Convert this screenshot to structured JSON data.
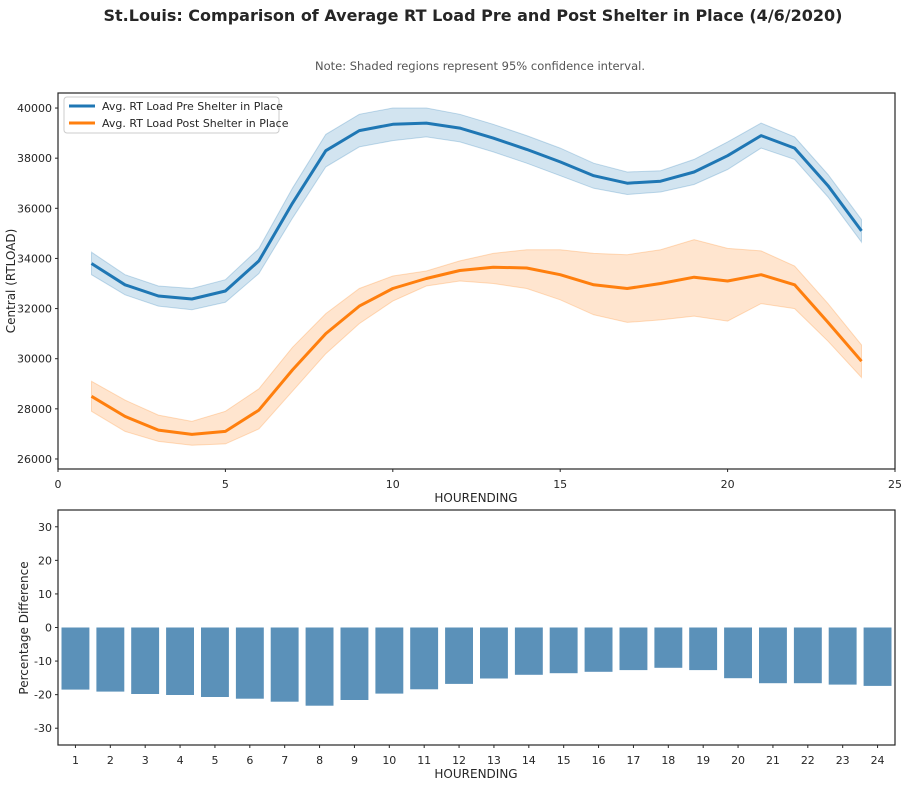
{
  "title": "St.Louis: Comparison of Average RT Load Pre and Post Shelter in Place (4/6/2020)",
  "note": "Note: Shaded regions represent 95% confidence interval.",
  "colors": {
    "pre": "#1f77b4",
    "post": "#ff7f0e",
    "bar": "#5b91b9"
  },
  "chart_data": [
    {
      "type": "line",
      "xlabel": "HOURENDING",
      "ylabel": "Central (RTLOAD)",
      "xlim": [
        0,
        25
      ],
      "ylim": [
        25600,
        40600
      ],
      "xticks": [
        "0",
        "5",
        "10",
        "15",
        "20",
        "25"
      ],
      "yticks": [
        "26000",
        "28000",
        "30000",
        "32000",
        "34000",
        "36000",
        "38000",
        "40000"
      ],
      "grid": false,
      "legend_position": "top-left",
      "x": [
        1,
        2,
        3,
        4,
        5,
        6,
        7,
        8,
        9,
        10,
        11,
        12,
        13,
        14,
        15,
        16,
        17,
        18,
        19,
        20,
        21,
        22,
        23,
        24
      ],
      "series": [
        {
          "name": "Avg. RT Load Pre Shelter in Place",
          "values": [
            33800,
            32950,
            32500,
            32380,
            32700,
            33900,
            36200,
            38300,
            39100,
            39350,
            39400,
            39200,
            38800,
            38350,
            37850,
            37300,
            37000,
            37080,
            37450,
            38100,
            38900,
            38400,
            36900,
            35100
          ],
          "ci_lower": [
            33350,
            32550,
            32100,
            31950,
            32250,
            33400,
            35600,
            37650,
            38450,
            38700,
            38850,
            38650,
            38250,
            37800,
            37300,
            36800,
            36550,
            36650,
            36950,
            37550,
            38400,
            37950,
            36450,
            34650
          ],
          "ci_upper": [
            34250,
            33350,
            32900,
            32800,
            33150,
            34400,
            36800,
            38950,
            39750,
            40000,
            40000,
            39750,
            39350,
            38900,
            38400,
            37800,
            37450,
            37500,
            37950,
            38650,
            39400,
            38850,
            37350,
            35550
          ]
        },
        {
          "name": "Avg. RT Load Post Shelter in Place",
          "values": [
            28500,
            27700,
            27150,
            26980,
            27100,
            27950,
            29550,
            31000,
            32100,
            32800,
            33200,
            33520,
            33650,
            33620,
            33350,
            32950,
            32800,
            33000,
            33250,
            33100,
            33350,
            32950,
            31450,
            29900
          ],
          "ci_lower": [
            27900,
            27100,
            26700,
            26550,
            26600,
            27200,
            28700,
            30200,
            31400,
            32300,
            32900,
            33100,
            33000,
            32800,
            32350,
            31750,
            31450,
            31550,
            31700,
            31500,
            32200,
            32000,
            30700,
            29250
          ],
          "ci_upper": [
            29100,
            28350,
            27750,
            27500,
            27900,
            28800,
            30450,
            31800,
            32800,
            33300,
            33500,
            33900,
            34200,
            34350,
            34350,
            34200,
            34150,
            34350,
            34750,
            34400,
            34300,
            33700,
            32200,
            30550
          ]
        }
      ]
    },
    {
      "type": "bar",
      "xlabel": "HOURENDING",
      "ylabel": "Percentage Difference",
      "ylim": [
        -35,
        35
      ],
      "yticks": [
        "30",
        "20",
        "10",
        "0",
        "-10",
        "-20",
        "-30"
      ],
      "grid": false,
      "categories": [
        "1",
        "2",
        "3",
        "4",
        "5",
        "6",
        "7",
        "8",
        "9",
        "10",
        "11",
        "12",
        "13",
        "14",
        "15",
        "16",
        "17",
        "18",
        "19",
        "20",
        "21",
        "22",
        "23",
        "24"
      ],
      "values": [
        -18.5,
        -19.1,
        -19.8,
        -20.1,
        -20.7,
        -21.2,
        -22.1,
        -23.3,
        -21.6,
        -19.7,
        -18.4,
        -16.8,
        -15.2,
        -14.1,
        -13.6,
        -13.2,
        -12.7,
        -12.0,
        -12.7,
        -15.1,
        -16.6,
        -16.6,
        -17.0,
        -17.4
      ]
    }
  ]
}
